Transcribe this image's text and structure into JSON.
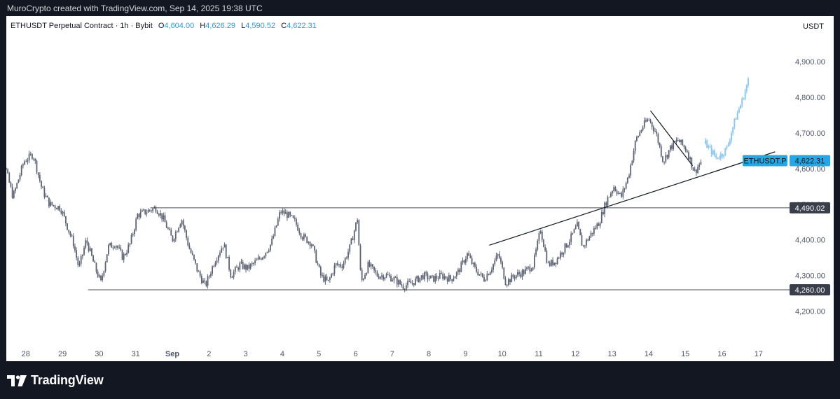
{
  "caption": "MuroCrypto created with TradingView.com, Sep 14, 2025 19:38 UTC",
  "legend": {
    "symbol": "ETHUSDT Perpetual Contract · 1h · Bybit",
    "open_key": "O",
    "open": "4,604.00",
    "high_key": "H",
    "high": "4,626.29",
    "low_key": "L",
    "low": "4,590.52",
    "close_key": "C",
    "close": "4,622.31"
  },
  "currency": "USDT",
  "brand": "TradingView",
  "colors": {
    "up": "#26a69a",
    "down": "#787b86",
    "candle": "#5d6272",
    "projection": "#90c7ee",
    "price_tag": "#23a7e6",
    "level_tag": "#3a3e4a",
    "line": "#131722"
  },
  "chart_data": {
    "type": "candlestick",
    "y_axis": {
      "ticks": [
        "4,200.00",
        "4,300.00",
        "4,400.00",
        "4,500.00",
        "4,600.00",
        "4,700.00",
        "4,800.00",
        "4,900.00"
      ],
      "tick_values": [
        4200,
        4300,
        4400,
        4500,
        4600,
        4700,
        4800,
        4900
      ],
      "range": [
        4150,
        5000
      ]
    },
    "x_axis": {
      "labels": [
        "28",
        "29",
        "30",
        "31",
        "Sep",
        "2",
        "3",
        "4",
        "5",
        "6",
        "7",
        "8",
        "9",
        "10",
        "11",
        "12",
        "13",
        "14",
        "15",
        "16",
        "17"
      ],
      "label_day_index": [
        -4,
        -3,
        -2,
        -1,
        0,
        1,
        2,
        3,
        4,
        5,
        6,
        7,
        8,
        9,
        10,
        11,
        12,
        13,
        14,
        15,
        16
      ],
      "unit": "days (Sep 1 = 0)"
    },
    "price_anchors_day_price": [
      [
        -4.95,
        4620
      ],
      [
        -4.75,
        4660
      ],
      [
        -4.55,
        4600
      ],
      [
        -4.35,
        4520
      ],
      [
        -4.05,
        4620
      ],
      [
        -3.8,
        4640
      ],
      [
        -3.55,
        4540
      ],
      [
        -3.35,
        4500
      ],
      [
        -3.05,
        4490
      ],
      [
        -2.7,
        4390
      ],
      [
        -2.55,
        4320
      ],
      [
        -2.35,
        4400
      ],
      [
        -2.1,
        4320
      ],
      [
        -1.95,
        4280
      ],
      [
        -1.75,
        4380
      ],
      [
        -1.55,
        4390
      ],
      [
        -1.35,
        4350
      ],
      [
        -1.15,
        4390
      ],
      [
        -0.95,
        4470
      ],
      [
        -0.7,
        4480
      ],
      [
        -0.45,
        4490
      ],
      [
        -0.25,
        4460
      ],
      [
        0,
        4400
      ],
      [
        0.25,
        4460
      ],
      [
        0.45,
        4380
      ],
      [
        0.7,
        4310
      ],
      [
        0.9,
        4270
      ],
      [
        1.15,
        4340
      ],
      [
        1.4,
        4390
      ],
      [
        1.6,
        4300
      ],
      [
        1.85,
        4330
      ],
      [
        2.05,
        4320
      ],
      [
        2.3,
        4340
      ],
      [
        2.5,
        4360
      ],
      [
        2.7,
        4390
      ],
      [
        2.95,
        4480
      ],
      [
        3.15,
        4470
      ],
      [
        3.35,
        4450
      ],
      [
        3.55,
        4410
      ],
      [
        3.8,
        4390
      ],
      [
        4.05,
        4300
      ],
      [
        4.25,
        4280
      ],
      [
        4.45,
        4330
      ],
      [
        4.65,
        4330
      ],
      [
        4.85,
        4380
      ],
      [
        5.05,
        4460
      ],
      [
        5.15,
        4280
      ],
      [
        5.35,
        4330
      ],
      [
        5.6,
        4300
      ],
      [
        5.85,
        4300
      ],
      [
        6.05,
        4290
      ],
      [
        6.3,
        4270
      ],
      [
        6.55,
        4280
      ],
      [
        6.85,
        4300
      ],
      [
        7.1,
        4290
      ],
      [
        7.35,
        4300
      ],
      [
        7.6,
        4290
      ],
      [
        7.8,
        4310
      ],
      [
        8.05,
        4360
      ],
      [
        8.25,
        4320
      ],
      [
        8.5,
        4290
      ],
      [
        8.7,
        4320
      ],
      [
        8.9,
        4360
      ],
      [
        9.1,
        4280
      ],
      [
        9.35,
        4300
      ],
      [
        9.6,
        4310
      ],
      [
        9.85,
        4330
      ],
      [
        10.05,
        4430
      ],
      [
        10.25,
        4330
      ],
      [
        10.45,
        4340
      ],
      [
        10.65,
        4370
      ],
      [
        10.85,
        4400
      ],
      [
        11.05,
        4440
      ],
      [
        11.2,
        4380
      ],
      [
        11.45,
        4420
      ],
      [
        11.65,
        4450
      ],
      [
        11.85,
        4510
      ],
      [
        12.05,
        4550
      ],
      [
        12.25,
        4520
      ],
      [
        12.45,
        4580
      ],
      [
        12.65,
        4680
      ],
      [
        12.85,
        4720
      ],
      [
        13.0,
        4740
      ],
      [
        13.2,
        4700
      ],
      [
        13.4,
        4620
      ],
      [
        13.6,
        4660
      ],
      [
        13.8,
        4680
      ],
      [
        14.05,
        4650
      ],
      [
        14.25,
        4590
      ],
      [
        14.45,
        4622.31
      ]
    ],
    "projection_day_price": [
      [
        14.55,
        4670
      ],
      [
        14.7,
        4650
      ],
      [
        14.85,
        4630
      ],
      [
        15.0,
        4640
      ],
      [
        15.15,
        4660
      ],
      [
        15.25,
        4700
      ],
      [
        15.4,
        4750
      ],
      [
        15.55,
        4790
      ],
      [
        15.7,
        4840
      ],
      [
        15.75,
        4860
      ]
    ],
    "horizontal_levels": [
      {
        "label": "4,490.02",
        "value": 4490.02,
        "from_day": -0.6,
        "to_day": 17.5
      },
      {
        "label": "4,260.00",
        "value": 4260.0,
        "from_day": -2.3,
        "to_day": 17.5
      }
    ],
    "trendlines": [
      {
        "from": [
          8.65,
          4385
        ],
        "to": [
          16.45,
          4647
        ]
      },
      {
        "from": [
          13.05,
          4762
        ],
        "to": [
          14.2,
          4608
        ]
      }
    ],
    "price_tag": {
      "symbol": "ETHUSDT.P",
      "value_label": "4,622.31",
      "value": 4622.31
    },
    "grid": false
  }
}
